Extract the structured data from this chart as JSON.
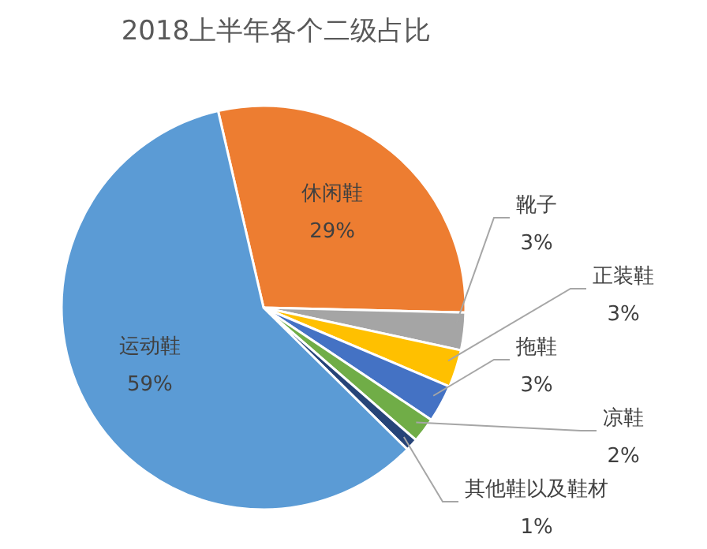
{
  "chart_data": {
    "type": "pie",
    "title": "2018上半年各个二级占比",
    "categories": [
      "休闲鞋",
      "靴子",
      "正装鞋",
      "拖鞋",
      "凉鞋",
      "其他鞋以及鞋材",
      "运动鞋"
    ],
    "values": [
      29,
      3,
      3,
      3,
      2,
      1,
      59
    ],
    "value_labels": [
      "29%",
      "3%",
      "3%",
      "3%",
      "2%",
      "1%",
      "59%"
    ],
    "colors": [
      "#ed7d31",
      "#a5a5a5",
      "#ffc000",
      "#4472c4",
      "#70ad47",
      "#264478",
      "#5b9bd5"
    ],
    "legend": false
  }
}
